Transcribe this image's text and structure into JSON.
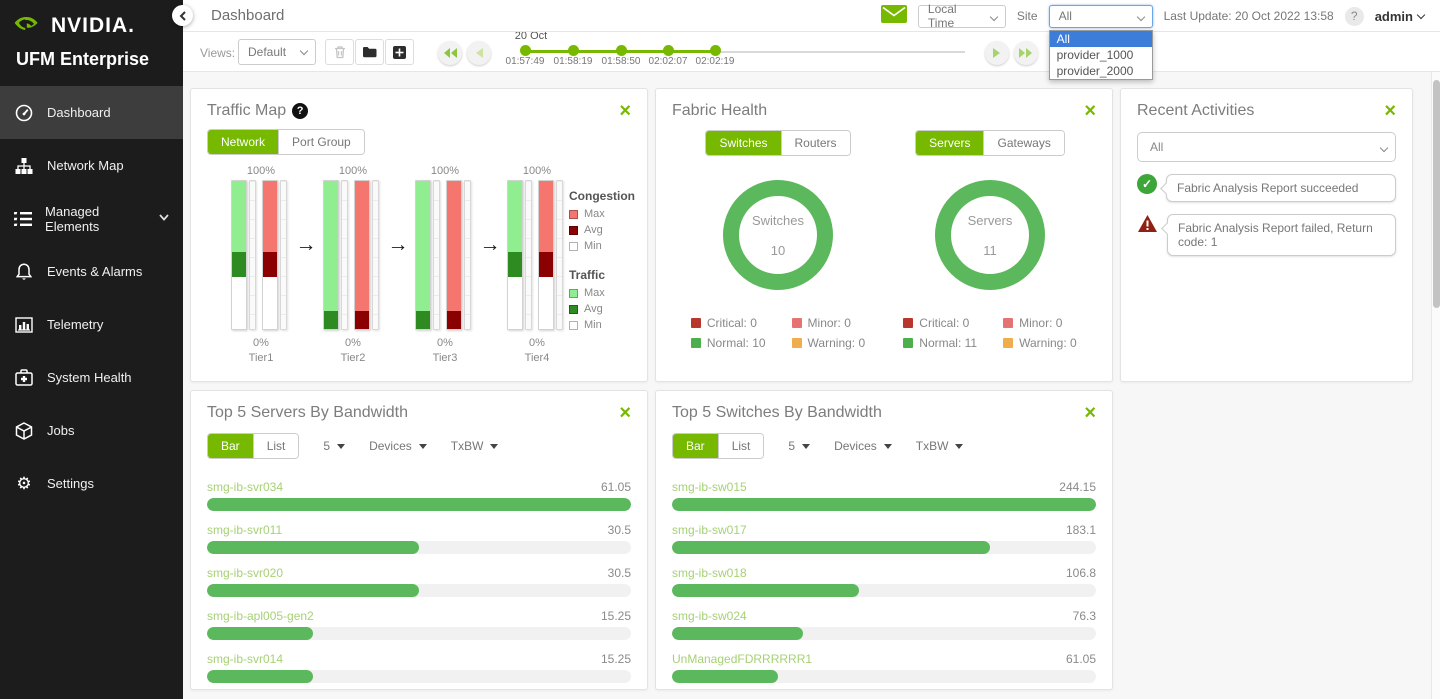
{
  "colors": {
    "accent_green": "#76b900",
    "bar_green": "#5cb85c",
    "traffic_max": "#90ee90",
    "traffic_avg": "#2e8b22",
    "congestion_max": "#f4766e",
    "congestion_avg": "#8b0000",
    "legend_min": "#ffffff",
    "critical": "#b7372c",
    "minor": "#e57373",
    "normal": "#4cae4c",
    "warning": "#f0ad4e",
    "select_highlight": "#3b7dd8"
  },
  "brand": {
    "wordmark": "NVIDIA.",
    "product": "UFM Enterprise"
  },
  "sidebar": {
    "items": [
      {
        "label": "Dashboard"
      },
      {
        "label": "Network Map"
      },
      {
        "label": "Managed Elements"
      },
      {
        "label": "Events & Alarms"
      },
      {
        "label": "Telemetry"
      },
      {
        "label": "System Health"
      },
      {
        "label": "Jobs"
      },
      {
        "label": "Settings"
      }
    ]
  },
  "header": {
    "title": "Dashboard",
    "time_mode_value": "Local Time",
    "site_label": "Site",
    "site_value": "All",
    "site_options": [
      {
        "label": "All"
      },
      {
        "label": "provider_1000"
      },
      {
        "label": "provider_2000"
      }
    ],
    "last_update": "Last Update: 20 Oct 2022 13:58",
    "help": "?",
    "user": "admin"
  },
  "toolbar": {
    "views_label": "Views:",
    "views_value": "Default",
    "timeline": {
      "date_label": "20 Oct",
      "ticks": [
        "01:57:49",
        "01:58:19",
        "01:58:50",
        "02:02:07",
        "02:02:19"
      ]
    }
  },
  "panels": {
    "traffic_map": {
      "title": "Traffic Map",
      "tabs": {
        "network": "Network",
        "port_group": "Port Group"
      },
      "tiers": [
        {
          "name": "Tier1",
          "cap_label": "100%",
          "util_label": "0%",
          "traffic": {
            "max": 48,
            "avg": 17
          },
          "congestion": {
            "max": 48,
            "avg": 17
          }
        },
        {
          "name": "Tier2",
          "cap_label": "100%",
          "util_label": "0%",
          "traffic": {
            "max": 88,
            "avg": 12
          },
          "congestion": {
            "max": 88,
            "avg": 12
          }
        },
        {
          "name": "Tier3",
          "cap_label": "100%",
          "util_label": "0%",
          "traffic": {
            "max": 88,
            "avg": 12
          },
          "congestion": {
            "max": 88,
            "avg": 12
          }
        },
        {
          "name": "Tier4",
          "cap_label": "100%",
          "util_label": "0%",
          "traffic": {
            "max": 48,
            "avg": 17
          },
          "congestion": {
            "max": 48,
            "avg": 17
          }
        }
      ],
      "legend": {
        "congestion": {
          "title": "Congestion",
          "items": [
            {
              "label": "Max",
              "color": "#f4766e"
            },
            {
              "label": "Avg",
              "color": "#8b0000"
            },
            {
              "label": "Min",
              "color": "#ffffff"
            }
          ]
        },
        "traffic": {
          "title": "Traffic",
          "items": [
            {
              "label": "Max",
              "color": "#90ee90"
            },
            {
              "label": "Avg",
              "color": "#2e8b22"
            },
            {
              "label": "Min",
              "color": "#ffffff"
            }
          ]
        }
      }
    },
    "fabric_health": {
      "title": "Fabric Health",
      "left": {
        "tabs": {
          "a": "Switches",
          "b": "Routers"
        },
        "donut_label": "Switches",
        "donut_value": "10",
        "legend": [
          {
            "text": "Critical: 0",
            "color": "#b7372c"
          },
          {
            "text": "Minor: 0",
            "color": "#e57373"
          },
          {
            "text": "Normal: 10",
            "color": "#4cae4c"
          },
          {
            "text": "Warning: 0",
            "color": "#f0ad4e"
          }
        ]
      },
      "right": {
        "tabs": {
          "a": "Servers",
          "b": "Gateways"
        },
        "donut_label": "Servers",
        "donut_value": "11",
        "legend": [
          {
            "text": "Critical: 0",
            "color": "#b7372c"
          },
          {
            "text": "Minor: 0",
            "color": "#e57373"
          },
          {
            "text": "Normal: 11",
            "color": "#4cae4c"
          },
          {
            "text": "Warning: 0",
            "color": "#f0ad4e"
          }
        ]
      }
    },
    "recent_activities": {
      "title": "Recent Activities",
      "filter_value": "All",
      "items": [
        {
          "status": "success",
          "text": "Fabric Analysis Report succeeded"
        },
        {
          "status": "error",
          "text": "Fabric Analysis Report failed, Return code: 1"
        }
      ]
    },
    "top_servers": {
      "title": "Top 5 Servers By Bandwidth",
      "tabs": {
        "bar": "Bar",
        "list": "List"
      },
      "count_value": "5",
      "type_value": "Devices",
      "metric_value": "TxBW",
      "rows": [
        {
          "name": "smg-ib-svr034",
          "value": "61.05",
          "pct": 100
        },
        {
          "name": "smg-ib-svr011",
          "value": "30.5",
          "pct": 50
        },
        {
          "name": "smg-ib-svr020",
          "value": "30.5",
          "pct": 50
        },
        {
          "name": "smg-ib-apl005-gen2",
          "value": "15.25",
          "pct": 25
        },
        {
          "name": "smg-ib-svr014",
          "value": "15.25",
          "pct": 25
        }
      ]
    },
    "top_switches": {
      "title": "Top 5 Switches By Bandwidth",
      "tabs": {
        "bar": "Bar",
        "list": "List"
      },
      "count_value": "5",
      "type_value": "Devices",
      "metric_value": "TxBW",
      "rows": [
        {
          "name": "smg-ib-sw015",
          "value": "244.15",
          "pct": 100
        },
        {
          "name": "smg-ib-sw017",
          "value": "183.1",
          "pct": 75
        },
        {
          "name": "smg-ib-sw018",
          "value": "106.8",
          "pct": 44
        },
        {
          "name": "smg-ib-sw024",
          "value": "76.3",
          "pct": 31
        },
        {
          "name": "UnManagedFDRRRRRR1",
          "value": "61.05",
          "pct": 25
        }
      ]
    }
  }
}
